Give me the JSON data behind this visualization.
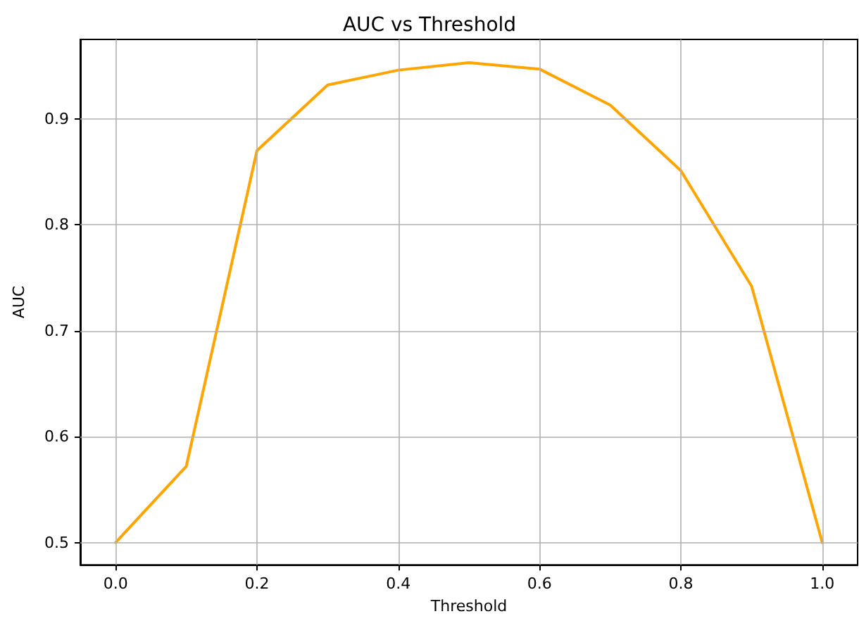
{
  "chart_data": {
    "type": "line",
    "title": "AUC vs Threshold",
    "xlabel": "Threshold",
    "ylabel": "AUC",
    "x": [
      0.0,
      0.1,
      0.2,
      0.3,
      0.4,
      0.5,
      0.6,
      0.7,
      0.8,
      0.9,
      1.0
    ],
    "series": [
      {
        "color": "#ffa500",
        "values": [
          0.5,
          0.572,
          0.87,
          0.932,
          0.946,
          0.953,
          0.947,
          0.913,
          0.851,
          0.742,
          0.5
        ]
      }
    ],
    "xlim": [
      -0.05,
      1.05
    ],
    "xticks": [
      {
        "value": 0,
        "label": "0.0"
      },
      0.2,
      0.4,
      0.6,
      0.8,
      {
        "value": 1,
        "label": "1.0"
      }
    ],
    "ylim": [
      0.479,
      0.975
    ],
    "yticks": [
      0.5,
      0.6,
      0.7,
      0.8,
      0.9
    ],
    "grid": true,
    "marker": "none",
    "line_style": "solid"
  }
}
